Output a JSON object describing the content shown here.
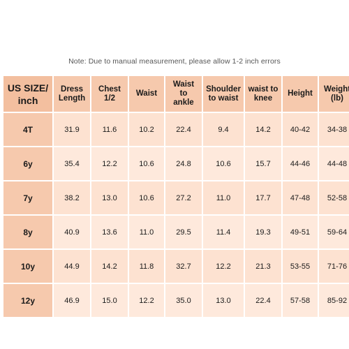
{
  "note": "Note: Due to manual measurement, please allow 1-2 inch errors",
  "headers": [
    "US SIZE/\ninch",
    "Dress\nLength",
    "Chest\n1/2",
    "Waist",
    "Waist\nto\nankle",
    "Shoulder\nto waist",
    "waist to\nknee",
    "Height",
    "Weight\n(lb)"
  ],
  "rows": [
    [
      "4T",
      "31.9",
      "11.6",
      "10.2",
      "22.4",
      "9.4",
      "14.2",
      "40-42",
      "34-38"
    ],
    [
      "6y",
      "35.4",
      "12.2",
      "10.6",
      "24.8",
      "10.6",
      "15.7",
      "44-46",
      "44-48"
    ],
    [
      "7y",
      "38.2",
      "13.0",
      "10.6",
      "27.2",
      "11.0",
      "17.7",
      "47-48",
      "52-58"
    ],
    [
      "8y",
      "40.9",
      "13.6",
      "11.0",
      "29.5",
      "11.4",
      "19.3",
      "49-51",
      "59-64"
    ],
    [
      "10y",
      "44.9",
      "14.2",
      "11.8",
      "32.7",
      "12.2",
      "21.3",
      "53-55",
      "71-76"
    ],
    [
      "12y",
      "46.9",
      "15.0",
      "12.2",
      "35.0",
      "13.0",
      "22.4",
      "57-58",
      "85-92"
    ]
  ],
  "colors": {
    "header_bg": "#f6c9ad",
    "cell_bg": "#fde2d1",
    "cell_alt_bg": "#fee9dc"
  }
}
